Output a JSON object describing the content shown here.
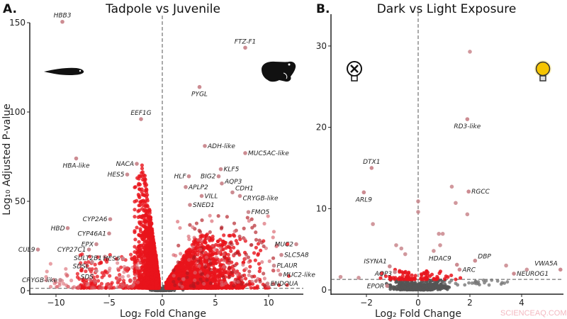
{
  "chart_data": [
    {
      "panel": "A.",
      "type": "scatter",
      "title": "Tadpole vs Juvenile",
      "xlabel": "Log₂ Fold Change",
      "ylabel": "Log₁₀ Adjusted P-value",
      "xlim": [
        -12.5,
        13.3
      ],
      "ylim": [
        -2,
        155
      ],
      "xticks": [
        -10,
        -5,
        0,
        5,
        10
      ],
      "xtick_labels": [
        "−10",
        "−5",
        "0",
        "5",
        "10"
      ],
      "yticks": [
        0,
        50,
        100,
        150
      ],
      "ytick_labels": [
        "0",
        "50",
        "100",
        "150"
      ],
      "threshold_y": 1.3,
      "threshold_x": 0,
      "grid": false,
      "colors": {
        "significant": "#e8141c",
        "nonsignificant": "#555555",
        "labeled": "#c9868c",
        "strong": "#a50f15"
      },
      "icons": [
        "tadpole-silhouette",
        "frog-silhouette"
      ],
      "labeled_points": [
        {
          "gene": "HBB3",
          "x": -9.4,
          "y": 150.5
        },
        {
          "gene": "FTZ-F1",
          "x": 7.8,
          "y": 136
        },
        {
          "gene": "PYGL",
          "x": 3.5,
          "y": 114
        },
        {
          "gene": "EEF1G",
          "x": -2.0,
          "y": 96
        },
        {
          "gene": "ADH-like",
          "x": 4.0,
          "y": 81
        },
        {
          "gene": "MUC5AC-like",
          "x": 7.8,
          "y": 77
        },
        {
          "gene": "NACA",
          "x": -2.4,
          "y": 71
        },
        {
          "gene": "HBA-like",
          "x": -8.1,
          "y": 74
        },
        {
          "gene": "HES5",
          "x": -3.3,
          "y": 65
        },
        {
          "gene": "KLF5",
          "x": 5.5,
          "y": 68
        },
        {
          "gene": "HLF",
          "x": 2.5,
          "y": 64
        },
        {
          "gene": "BIG2",
          "x": 5.3,
          "y": 64
        },
        {
          "gene": "AQP3",
          "x": 5.6,
          "y": 60
        },
        {
          "gene": "APLP2",
          "x": 2.2,
          "y": 58
        },
        {
          "gene": "CDH1",
          "x": 6.6,
          "y": 55
        },
        {
          "gene": "VILL",
          "x": 3.7,
          "y": 53
        },
        {
          "gene": "CRYGB-like",
          "x": 7.3,
          "y": 53
        },
        {
          "gene": "SNED1",
          "x": 2.6,
          "y": 48
        },
        {
          "gene": "FMO5",
          "x": 8.1,
          "y": 44
        },
        {
          "gene": "CYP2A6",
          "x": -4.9,
          "y": 40
        },
        {
          "gene": "CYP46A1",
          "x": -5.0,
          "y": 32
        },
        {
          "gene": "HBD",
          "x": -8.9,
          "y": 35
        },
        {
          "gene": "EPX",
          "x": -6.2,
          "y": 26
        },
        {
          "gene": "CUL9",
          "x": -11.7,
          "y": 23
        },
        {
          "gene": "CYP27C1",
          "x": -6.9,
          "y": 23
        },
        {
          "gene": "SULT2B1",
          "x": -5.4,
          "y": 19
        },
        {
          "gene": "HES6",
          "x": -3.7,
          "y": 18
        },
        {
          "gene": "SDSL",
          "x": -6.6,
          "y": 16
        },
        {
          "gene": "SDS",
          "x": -6.2,
          "y": 11
        },
        {
          "gene": "CRYGB-like",
          "x": -9.6,
          "y": 6
        },
        {
          "gene": "MUC2",
          "x": 12.6,
          "y": 26
        },
        {
          "gene": "SLC5A8",
          "x": 11.2,
          "y": 20
        },
        {
          "gene": "PLAUR",
          "x": 10.5,
          "y": 14
        },
        {
          "gene": "MUC2-like",
          "x": 11.1,
          "y": 9
        },
        {
          "gene": "ENDOUA",
          "x": 9.9,
          "y": 4
        }
      ]
    },
    {
      "panel": "B.",
      "type": "scatter",
      "title": "Dark vs Light Exposure",
      "xlabel": "Log₂ Fold Change",
      "xlim": [
        -3.4,
        5.6
      ],
      "ylim": [
        -0.5,
        33
      ],
      "xticks": [
        -2,
        0,
        2,
        4
      ],
      "xtick_labels": [
        "−2",
        "0",
        "2",
        "4"
      ],
      "yticks": [
        0,
        10,
        20,
        30
      ],
      "ytick_labels": [
        "0",
        "10",
        "20",
        "30"
      ],
      "threshold_y": 1.3,
      "threshold_x": 0,
      "grid": false,
      "icons": [
        "lightbulb-off-icon",
        "lightbulb-on-icon"
      ],
      "colors": {
        "bulb_on": "#f5c400"
      },
      "labeled_points": [
        {
          "gene": "RD3-like",
          "x": 1.9,
          "y": 21
        },
        {
          "gene": "DTX1",
          "x": -1.8,
          "y": 15
        },
        {
          "gene": "ARL9",
          "x": -2.1,
          "y": 12
        },
        {
          "gene": "RGCC",
          "x": 1.95,
          "y": 12.1
        },
        {
          "gene": "HDAC9",
          "x": 1.5,
          "y": 3.1
        },
        {
          "gene": "DBP",
          "x": 2.2,
          "y": 3.6
        },
        {
          "gene": "ARC",
          "x": 1.6,
          "y": 2.5
        },
        {
          "gene": "NEUROG1",
          "x": 3.7,
          "y": 2.0
        },
        {
          "gene": "VWA5A",
          "x": 5.5,
          "y": 2.5
        },
        {
          "gene": "ISYNA1",
          "x": -1.1,
          "y": 2.9
        },
        {
          "gene": "AQP3",
          "x": -0.9,
          "y": 2.2
        },
        {
          "gene": "EPOR",
          "x": -1.2,
          "y": 0.5
        }
      ],
      "other_points": [
        {
          "x": 2.0,
          "y": 29.3
        },
        {
          "x": 1.3,
          "y": 12.7
        },
        {
          "x": 1.45,
          "y": 10.7
        },
        {
          "x": 1.9,
          "y": 9.3
        },
        {
          "x": -1.75,
          "y": 8.1
        },
        {
          "x": 0,
          "y": 10.9
        },
        {
          "x": 0,
          "y": 9.6
        },
        {
          "x": 0.8,
          "y": 6.9
        },
        {
          "x": 0.95,
          "y": 6.9
        },
        {
          "x": 0.85,
          "y": 5.5
        },
        {
          "x": -0.85,
          "y": 5.5
        },
        {
          "x": -0.65,
          "y": 5.1
        },
        {
          "x": 0.6,
          "y": 4.8
        },
        {
          "x": -0.5,
          "y": 4.4
        },
        {
          "x": 3.4,
          "y": 3.0
        },
        {
          "x": 4.2,
          "y": 2.5
        },
        {
          "x": -3.0,
          "y": 1.6
        },
        {
          "x": -2.3,
          "y": 1.5
        }
      ]
    }
  ],
  "watermark": "SCIENCEAQ.COM"
}
